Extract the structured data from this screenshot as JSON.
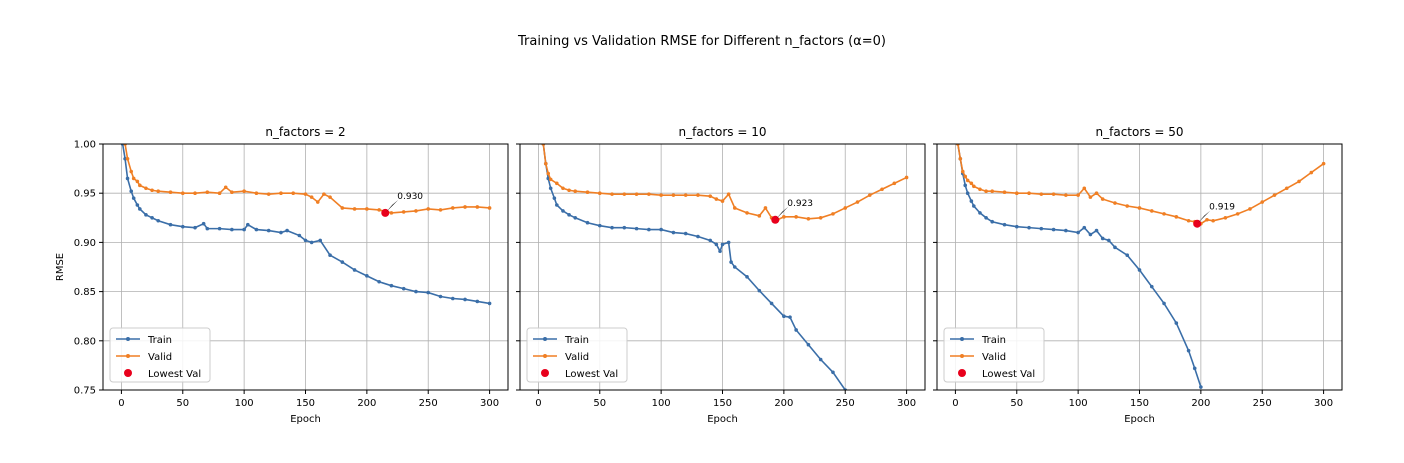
{
  "figure": {
    "suptitle": "Training vs Validation RMSE for Different n_factors (α=0)"
  },
  "chart_data": [
    {
      "type": "line",
      "title": "n_factors = 2",
      "xlabel": "Epoch",
      "ylabel": "RMSE",
      "xlim": [
        -15,
        315
      ],
      "ylim": [
        0.75,
        1.0
      ],
      "xticks": [
        0,
        50,
        100,
        150,
        200,
        250,
        300
      ],
      "yticks": [
        0.75,
        0.8,
        0.85,
        0.9,
        0.95,
        1.0
      ],
      "grid": true,
      "legend_position": "lower-left",
      "legend": [
        "Train",
        "Valid",
        "Lowest Val"
      ],
      "series": [
        {
          "name": "Train",
          "color": "#3a6ea8",
          "x": [
            1,
            3,
            5,
            8,
            10,
            13,
            15,
            20,
            25,
            30,
            40,
            50,
            60,
            67,
            70,
            80,
            90,
            100,
            103,
            110,
            120,
            130,
            135,
            145,
            150,
            155,
            162,
            170,
            180,
            190,
            200,
            210,
            220,
            230,
            240,
            250,
            260,
            270,
            280,
            290,
            300
          ],
          "y": [
            1.0,
            0.985,
            0.965,
            0.952,
            0.945,
            0.938,
            0.934,
            0.928,
            0.925,
            0.922,
            0.918,
            0.916,
            0.915,
            0.919,
            0.914,
            0.914,
            0.913,
            0.913,
            0.918,
            0.913,
            0.912,
            0.91,
            0.912,
            0.907,
            0.902,
            0.9,
            0.902,
            0.887,
            0.88,
            0.872,
            0.866,
            0.86,
            0.856,
            0.853,
            0.85,
            0.849,
            0.845,
            0.843,
            0.842,
            0.84,
            0.838
          ]
        },
        {
          "name": "Valid",
          "color": "#f07f24",
          "x": [
            3,
            5,
            8,
            10,
            13,
            15,
            20,
            25,
            30,
            40,
            50,
            60,
            70,
            80,
            85,
            90,
            100,
            110,
            120,
            130,
            140,
            150,
            155,
            160,
            165,
            170,
            180,
            190,
            200,
            210,
            220,
            230,
            240,
            250,
            260,
            270,
            280,
            290,
            300
          ],
          "y": [
            1.0,
            0.985,
            0.972,
            0.965,
            0.962,
            0.958,
            0.955,
            0.953,
            0.952,
            0.951,
            0.95,
            0.95,
            0.951,
            0.95,
            0.956,
            0.951,
            0.952,
            0.95,
            0.949,
            0.95,
            0.95,
            0.949,
            0.946,
            0.941,
            0.949,
            0.946,
            0.935,
            0.934,
            0.934,
            0.933,
            0.93,
            0.931,
            0.932,
            0.934,
            0.933,
            0.935,
            0.936,
            0.936,
            0.935
          ]
        },
        {
          "name": "Lowest Val",
          "color": "#e8001c",
          "x": [
            215
          ],
          "y": [
            0.93
          ]
        }
      ],
      "annotation": {
        "text": "0.930",
        "x": 215,
        "y": 0.93
      }
    },
    {
      "type": "line",
      "title": "n_factors = 10",
      "xlabel": "Epoch",
      "ylabel": "",
      "xlim": [
        -15,
        315
      ],
      "ylim": [
        0.75,
        1.0
      ],
      "xticks": [
        0,
        50,
        100,
        150,
        200,
        250,
        300
      ],
      "yticks": [
        0.75,
        0.8,
        0.85,
        0.9,
        0.95,
        1.0
      ],
      "grid": true,
      "legend_position": "lower-left",
      "legend": [
        "Train",
        "Valid",
        "Lowest Val"
      ],
      "series": [
        {
          "name": "Train",
          "color": "#3a6ea8",
          "x": [
            4,
            6,
            8,
            10,
            13,
            15,
            20,
            25,
            30,
            40,
            50,
            60,
            70,
            80,
            90,
            100,
            110,
            120,
            130,
            140,
            145,
            148,
            150,
            155,
            157,
            160,
            170,
            180,
            190,
            200,
            205,
            210,
            220,
            230,
            240,
            250
          ],
          "y": [
            1.0,
            0.98,
            0.965,
            0.955,
            0.945,
            0.938,
            0.932,
            0.928,
            0.925,
            0.92,
            0.917,
            0.915,
            0.915,
            0.914,
            0.913,
            0.913,
            0.91,
            0.909,
            0.906,
            0.902,
            0.898,
            0.891,
            0.898,
            0.9,
            0.88,
            0.875,
            0.865,
            0.851,
            0.838,
            0.825,
            0.824,
            0.811,
            0.796,
            0.781,
            0.768,
            0.75
          ]
        },
        {
          "name": "Valid",
          "color": "#f07f24",
          "x": [
            4,
            6,
            8,
            10,
            15,
            20,
            25,
            30,
            40,
            50,
            60,
            70,
            80,
            90,
            100,
            110,
            120,
            130,
            140,
            145,
            150,
            155,
            160,
            170,
            180,
            185,
            190,
            195,
            200,
            210,
            220,
            230,
            240,
            250,
            260,
            270,
            280,
            290,
            300
          ],
          "y": [
            1.0,
            0.98,
            0.97,
            0.964,
            0.96,
            0.955,
            0.953,
            0.952,
            0.951,
            0.95,
            0.949,
            0.949,
            0.949,
            0.949,
            0.948,
            0.948,
            0.948,
            0.948,
            0.947,
            0.944,
            0.942,
            0.949,
            0.935,
            0.93,
            0.927,
            0.935,
            0.925,
            0.923,
            0.926,
            0.926,
            0.924,
            0.925,
            0.929,
            0.935,
            0.941,
            0.948,
            0.954,
            0.96,
            0.966
          ]
        },
        {
          "name": "Lowest Val",
          "color": "#e8001c",
          "x": [
            193
          ],
          "y": [
            0.923
          ]
        }
      ],
      "annotation": {
        "text": "0.923",
        "x": 193,
        "y": 0.923
      }
    },
    {
      "type": "line",
      "title": "n_factors = 50",
      "xlabel": "Epoch",
      "ylabel": "",
      "xlim": [
        -15,
        315
      ],
      "ylim": [
        0.75,
        1.0
      ],
      "xticks": [
        0,
        50,
        100,
        150,
        200,
        250,
        300
      ],
      "yticks": [
        0.75,
        0.8,
        0.85,
        0.9,
        0.95,
        1.0
      ],
      "grid": true,
      "legend_position": "lower-left",
      "legend": [
        "Train",
        "Valid",
        "Lowest Val"
      ],
      "series": [
        {
          "name": "Train",
          "color": "#3a6ea8",
          "x": [
            2,
            4,
            6,
            8,
            10,
            13,
            15,
            20,
            25,
            30,
            40,
            50,
            60,
            70,
            80,
            90,
            100,
            105,
            110,
            115,
            120,
            125,
            130,
            140,
            150,
            160,
            170,
            180,
            190,
            195,
            200
          ],
          "y": [
            1.0,
            0.985,
            0.97,
            0.958,
            0.95,
            0.942,
            0.937,
            0.93,
            0.925,
            0.921,
            0.918,
            0.916,
            0.915,
            0.914,
            0.913,
            0.912,
            0.91,
            0.915,
            0.908,
            0.912,
            0.904,
            0.902,
            0.895,
            0.887,
            0.872,
            0.855,
            0.838,
            0.818,
            0.79,
            0.772,
            0.753
          ]
        },
        {
          "name": "Valid",
          "color": "#f07f24",
          "x": [
            2,
            4,
            6,
            8,
            10,
            13,
            15,
            20,
            25,
            30,
            40,
            50,
            60,
            70,
            80,
            90,
            100,
            105,
            110,
            115,
            120,
            130,
            140,
            150,
            160,
            170,
            180,
            190,
            195,
            200,
            205,
            210,
            220,
            230,
            240,
            250,
            260,
            270,
            280,
            290,
            300
          ],
          "y": [
            1.0,
            0.985,
            0.972,
            0.967,
            0.963,
            0.96,
            0.957,
            0.954,
            0.952,
            0.952,
            0.951,
            0.95,
            0.95,
            0.949,
            0.949,
            0.948,
            0.948,
            0.955,
            0.946,
            0.95,
            0.944,
            0.94,
            0.937,
            0.935,
            0.932,
            0.929,
            0.926,
            0.922,
            0.921,
            0.919,
            0.923,
            0.922,
            0.925,
            0.929,
            0.934,
            0.941,
            0.948,
            0.955,
            0.962,
            0.971,
            0.98
          ]
        },
        {
          "name": "Lowest Val",
          "color": "#e8001c",
          "x": [
            197
          ],
          "y": [
            0.919
          ]
        }
      ],
      "annotation": {
        "text": "0.919",
        "x": 197,
        "y": 0.919
      }
    }
  ]
}
